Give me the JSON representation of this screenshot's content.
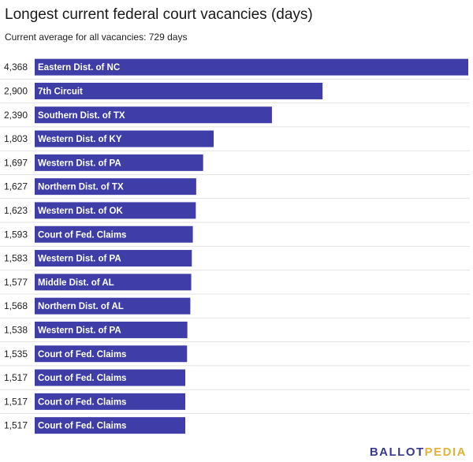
{
  "chart_data": {
    "type": "bar",
    "orientation": "horizontal",
    "title": "Longest current federal court vacancies (days)",
    "subtitle": "Current average for all vacancies: 729 days",
    "categories": [
      "Eastern Dist. of NC",
      "7th Circuit",
      "Southern Dist. of TX",
      "Western Dist. of KY",
      "Western Dist. of PA",
      "Northern Dist. of TX",
      "Western Dist. of OK",
      "Court of Fed. Claims",
      "Western Dist. of PA",
      "Middle Dist. of AL",
      "Northern Dist. of AL",
      "Western Dist. of PA",
      "Court of Fed. Claims",
      "Court of Fed. Claims",
      "Court of Fed. Claims",
      "Court of Fed. Claims"
    ],
    "values": [
      4368,
      2900,
      2390,
      1803,
      1697,
      1627,
      1623,
      1593,
      1583,
      1577,
      1568,
      1538,
      1535,
      1517,
      1517,
      1517
    ],
    "value_labels": [
      "4,368",
      "2,900",
      "2,390",
      "1,803",
      "1,697",
      "1,627",
      "1,623",
      "1,593",
      "1,583",
      "1,577",
      "1,568",
      "1,538",
      "1,535",
      "1,517",
      "1,517",
      "1,517"
    ],
    "xlim": [
      0,
      4368
    ],
    "xlabel": "",
    "ylabel": "",
    "bar_color": "#3f3ea8"
  },
  "branding": {
    "logo_part1": "BALLOT",
    "logo_part2": "PEDIA",
    "color1": "#3a3a8c",
    "color2": "#e2b33a"
  }
}
